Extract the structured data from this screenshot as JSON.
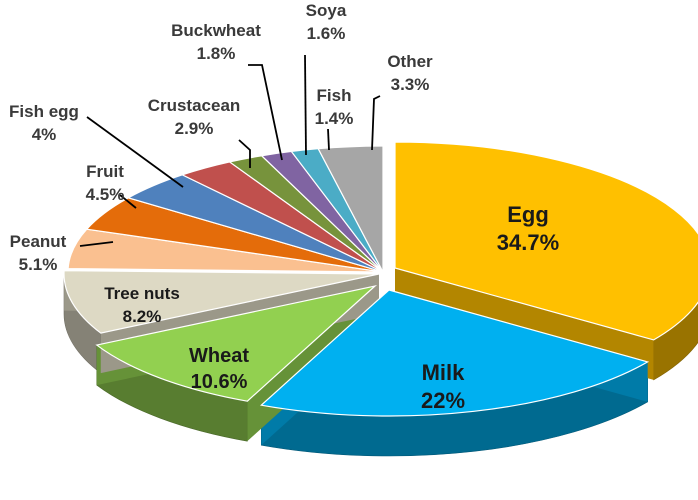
{
  "chart_data": {
    "type": "pie",
    "style": "3d-exploded",
    "slices": [
      {
        "label": "Egg",
        "value": 34.7,
        "value_label": "34.7%",
        "color": "#FFC000"
      },
      {
        "label": "Milk",
        "value": 22,
        "value_label": "22%",
        "color": "#00B0F0"
      },
      {
        "label": "Wheat",
        "value": 10.6,
        "value_label": "10.6%",
        "color": "#92D050"
      },
      {
        "label": "Tree nuts",
        "value": 8.2,
        "value_label": "8.2%",
        "color": "#DDD9C4"
      },
      {
        "label": "Peanut",
        "value": 5.1,
        "value_label": "5.1%",
        "color": "#FAC090"
      },
      {
        "label": "Fruit",
        "value": 4.5,
        "value_label": "4.5%",
        "color": "#E46C0A"
      },
      {
        "label": "Fish egg",
        "value": 4,
        "value_label": "4%",
        "color": "#4F81BD"
      },
      {
        "label": "Crustacean",
        "value": 2.9,
        "value_label": "2.9%",
        "color": "#C0504D"
      },
      {
        "label": "Buckwheat",
        "value": 1.8,
        "value_label": "1.8%",
        "color": "#77933C"
      },
      {
        "label": "Soya",
        "value": 1.6,
        "value_label": "1.6%",
        "color": "#8064A2"
      },
      {
        "label": "Fish",
        "value": 1.4,
        "value_label": "1.4%",
        "color": "#4BACC6"
      },
      {
        "label": "Other",
        "value": 3.3,
        "value_label": "3.3%",
        "color": "#A6A6A6"
      }
    ]
  }
}
